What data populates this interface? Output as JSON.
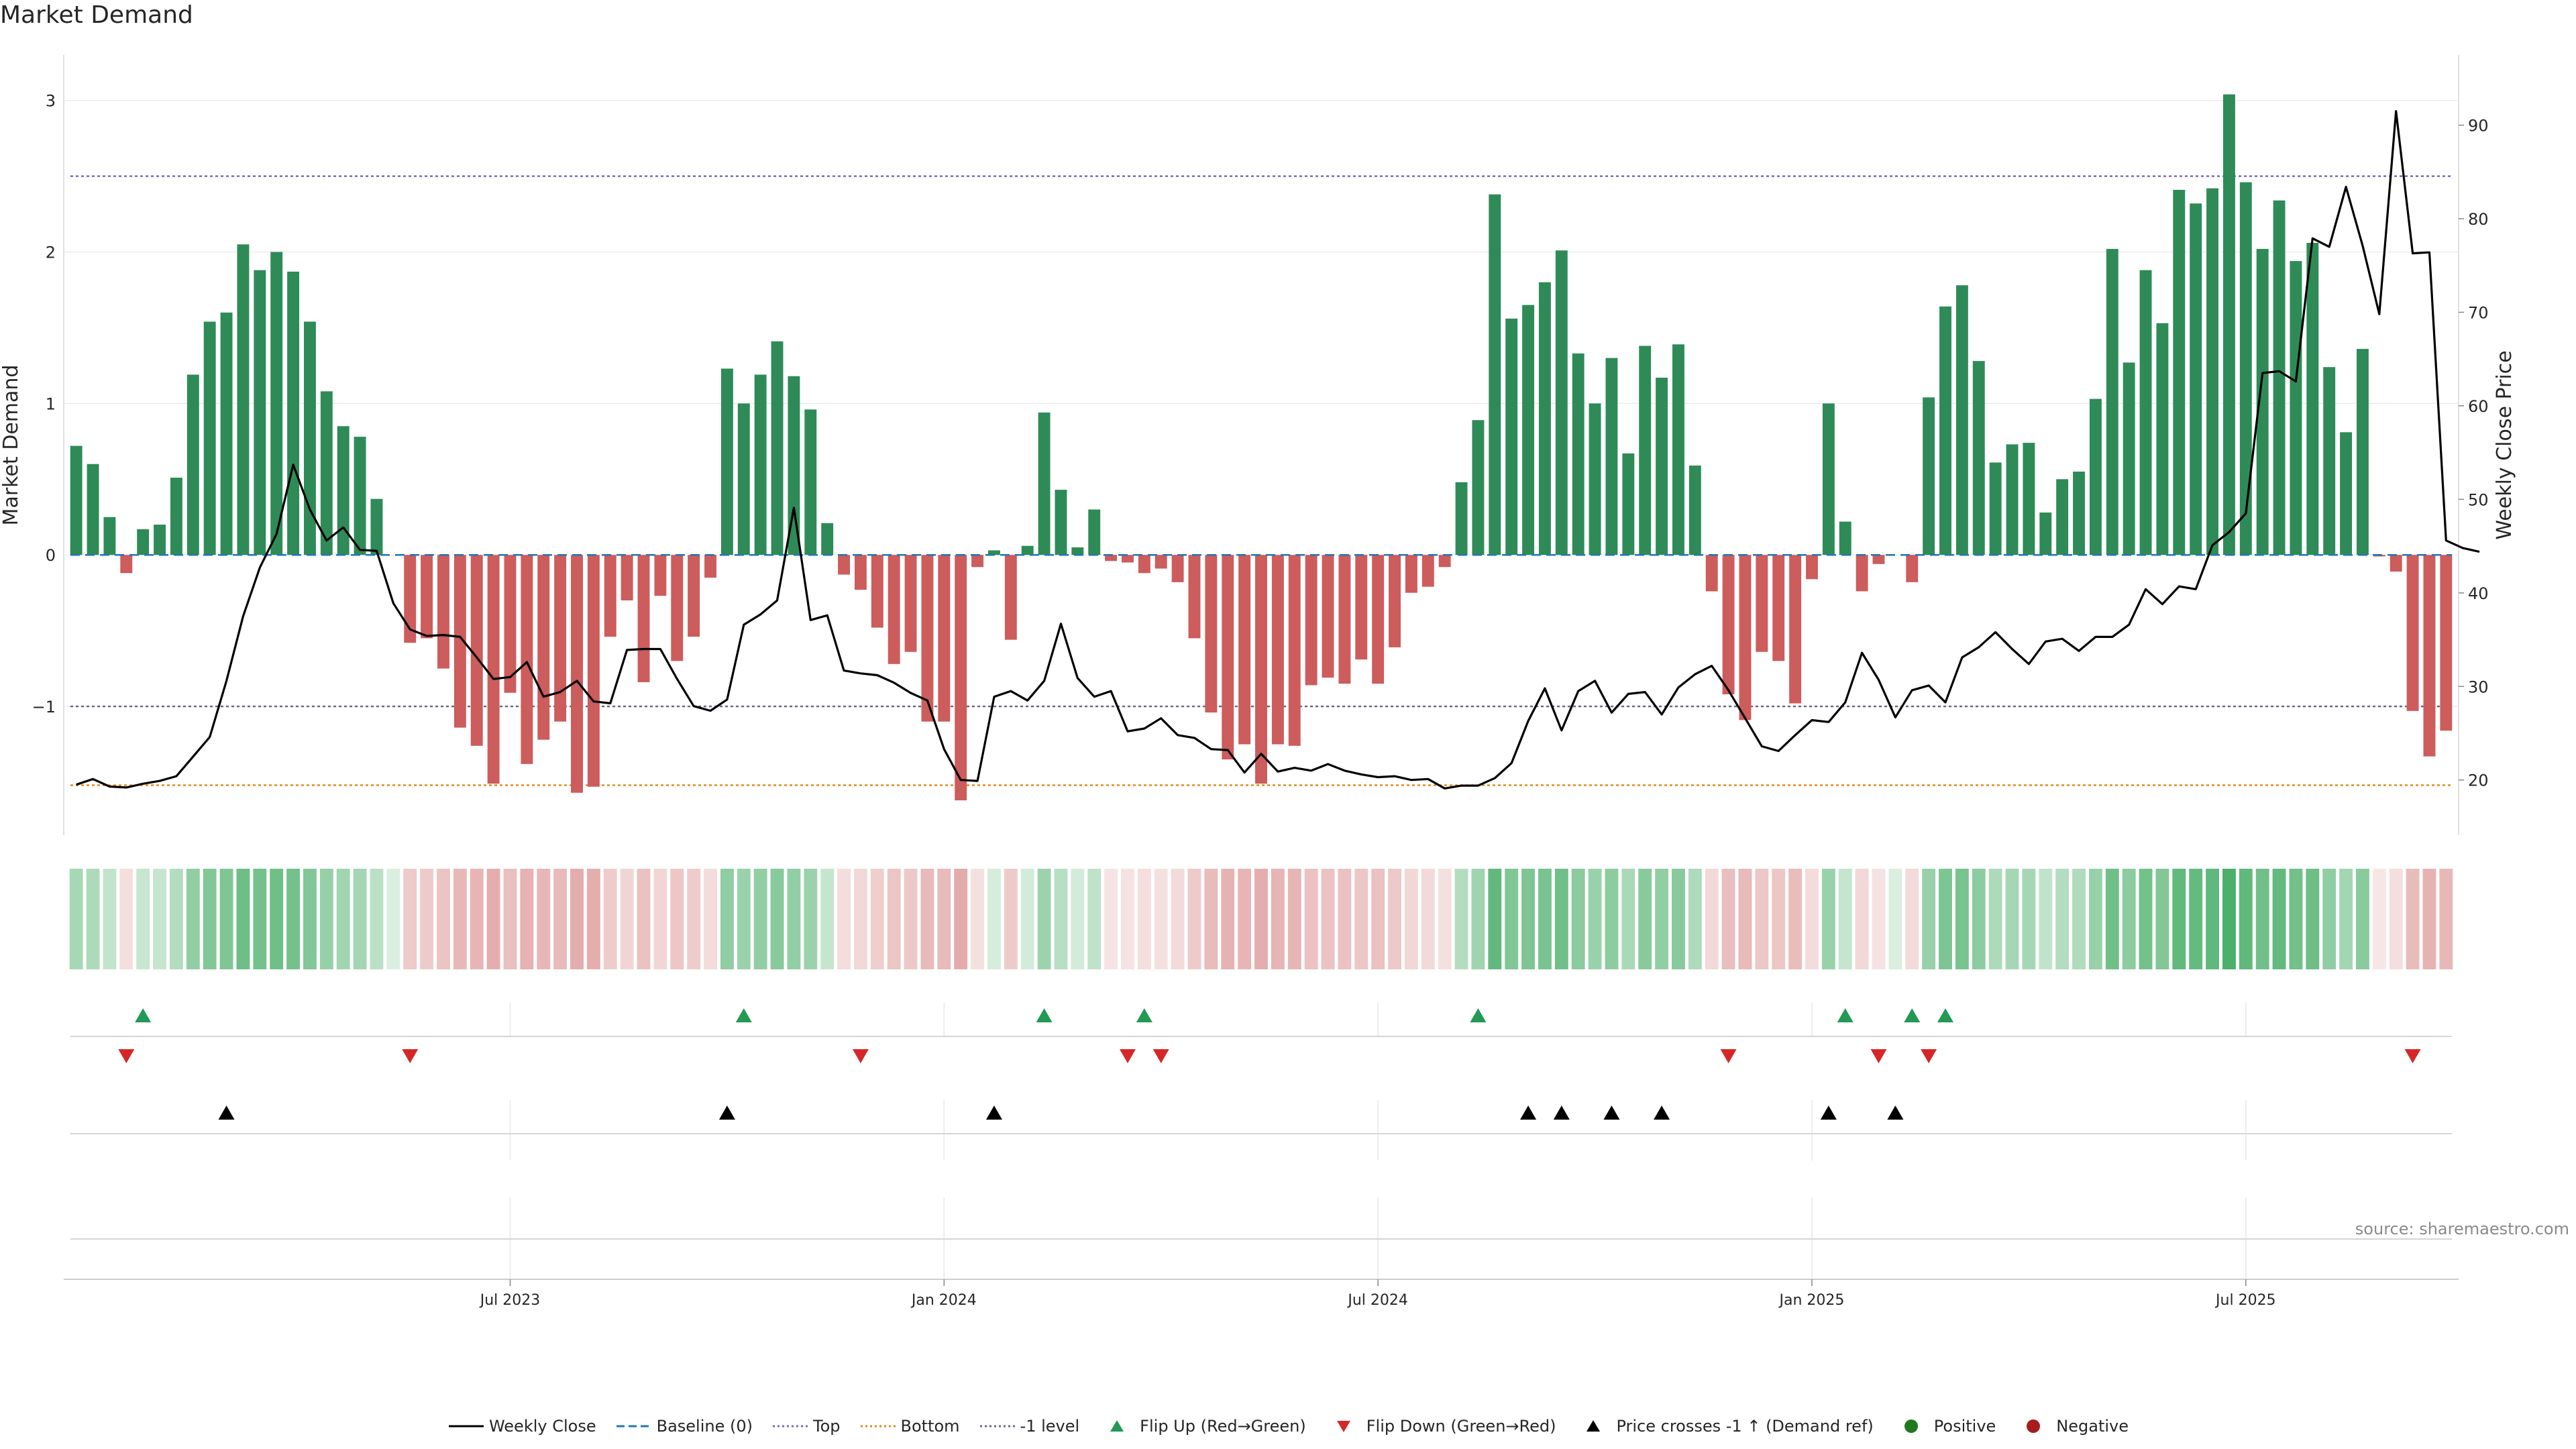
{
  "title": "Market Demand",
  "source": "source: sharemaestro.com",
  "chart_data": {
    "type": "bar+line",
    "title": "Market Demand",
    "ylabel_left": "Market Demand",
    "ylabel_right": "Weekly Close Price",
    "ylim_left": [
      -1.85,
      3.3
    ],
    "ylim_right": [
      14.1,
      97.5
    ],
    "yticks_left": [
      -1,
      0,
      1,
      2,
      3
    ],
    "yticks_right": [
      20,
      30,
      40,
      50,
      60,
      70,
      80,
      90
    ],
    "ytick_labels_left": [
      "−1",
      "0",
      "1",
      "2",
      "3"
    ],
    "ytick_labels_right": [
      "20",
      "30",
      "40",
      "50",
      "60",
      "70",
      "80",
      "90"
    ],
    "x_start": "2023-01-02",
    "x_step_days": 7,
    "x_tick_labels": [
      "Jul 2023",
      "Jan 2024",
      "Jul 2024",
      "Jan 2025",
      "Jul 2025"
    ],
    "x_tick_weeks": [
      26,
      52,
      78,
      104,
      130
    ],
    "reference_lines": {
      "top": 2.5,
      "bottom": -1.52,
      "minus_one": -1,
      "baseline": 0
    },
    "demand": [
      0.72,
      0.6,
      0.25,
      -0.12,
      0.17,
      0.2,
      0.51,
      1.19,
      1.54,
      1.6,
      2.05,
      1.88,
      2.0,
      1.87,
      1.54,
      1.08,
      0.85,
      0.78,
      0.37,
      0,
      -0.58,
      -0.55,
      -0.75,
      -1.14,
      -1.26,
      -1.51,
      -0.91,
      -1.38,
      -1.22,
      -1.1,
      -1.57,
      -1.53,
      -0.54,
      -0.3,
      -0.84,
      -0.27,
      -0.7,
      -0.54,
      -0.15,
      1.23,
      1.0,
      1.19,
      1.41,
      1.18,
      0.96,
      0.21,
      -0.13,
      -0.23,
      -0.48,
      -0.72,
      -0.64,
      -1.1,
      -1.1,
      -1.62,
      -0.08,
      0.03,
      -0.56,
      0.06,
      0.94,
      0.43,
      0.05,
      0.3,
      -0.04,
      -0.05,
      -0.12,
      -0.09,
      -0.18,
      -0.55,
      -1.04,
      -1.35,
      -1.25,
      -1.51,
      -1.25,
      -1.26,
      -0.86,
      -0.81,
      -0.85,
      -0.69,
      -0.85,
      -0.61,
      -0.25,
      -0.21,
      -0.08,
      0.48,
      0.89,
      2.38,
      1.56,
      1.65,
      1.8,
      2.01,
      1.33,
      1.0,
      1.3,
      0.67,
      1.38,
      1.17,
      1.39,
      0.59,
      -0.24,
      -0.92,
      -1.09,
      -0.64,
      -0.7,
      -0.98,
      -0.16,
      1.0,
      0.22,
      -0.24,
      -0.06,
      0,
      -0.18,
      1.04,
      1.64,
      1.78,
      1.28,
      0.61,
      0.73,
      0.74,
      0.28,
      0.5,
      0.55,
      1.03,
      2.02,
      1.27,
      1.88,
      1.53,
      2.41,
      2.32,
      2.42,
      3.04,
      2.46,
      2.02,
      2.34,
      1.94,
      2.06,
      1.24,
      0.81,
      1.36,
      -0.01,
      -0.11,
      -1.03,
      -1.33,
      -1.16
    ],
    "weekly_close": [
      19.5,
      20.1,
      19.3,
      19.2,
      19.6,
      19.9,
      20.4,
      22.5,
      24.6,
      30.6,
      37.5,
      42.7,
      46.3,
      53.7,
      48.9,
      45.6,
      47.0,
      44.6,
      44.5,
      38.9,
      36.1,
      35.4,
      35.5,
      35.3,
      33.1,
      30.8,
      31.0,
      32.6,
      28.9,
      29.4,
      30.6,
      28.4,
      28.2,
      33.9,
      34.0,
      34.0,
      30.8,
      27.9,
      27.4,
      28.6,
      36.6,
      37.7,
      39.2,
      49.1,
      37.1,
      37.6,
      31.7,
      31.4,
      31.2,
      30.4,
      29.3,
      28.5,
      23.3,
      20.0,
      19.9,
      28.9,
      29.5,
      28.5,
      30.6,
      36.7,
      30.9,
      28.9,
      29.5,
      25.2,
      25.5,
      26.6,
      24.8,
      24.5,
      23.3,
      23.2,
      20.8,
      22.8,
      20.9,
      21.3,
      21.0,
      21.7,
      21.0,
      20.6,
      20.3,
      20.4,
      20.0,
      20.1,
      19.1,
      19.4,
      19.4,
      20.2,
      21.8,
      26.3,
      29.8,
      25.3,
      29.5,
      30.6,
      27.2,
      29.2,
      29.4,
      27.0,
      29.9,
      31.3,
      32.2,
      29.6,
      26.6,
      23.6,
      23.1,
      24.8,
      26.4,
      26.2,
      28.3,
      33.6,
      30.7,
      26.7,
      29.6,
      30.1,
      28.3,
      33.1,
      34.2,
      35.8,
      34.0,
      32.4,
      34.8,
      35.1,
      33.8,
      35.3,
      35.3,
      36.6,
      40.4,
      38.8,
      40.7,
      40.4,
      45.1,
      46.5,
      48.5,
      63.5,
      63.7,
      62.6,
      77.9,
      77.0,
      83.4,
      77.1,
      69.8,
      91.5,
      76.3,
      76.4,
      45.6,
      44.8,
      44.4
    ],
    "flip_up_weeks": [
      4,
      40,
      58,
      64,
      84,
      106,
      110,
      112
    ],
    "flip_down_weeks": [
      3,
      20,
      47,
      63,
      65,
      99,
      108,
      111,
      140
    ],
    "price_cross_weeks": [
      9,
      39,
      55,
      87,
      89,
      92,
      95,
      105,
      109
    ],
    "legend": [
      {
        "label": "Weekly Close",
        "kind": "line",
        "color": "#000000"
      },
      {
        "label": "Baseline (0)",
        "kind": "dash",
        "color": "#1f77b4"
      },
      {
        "label": "Top",
        "kind": "dot",
        "color": "#7b68c4"
      },
      {
        "label": "Bottom",
        "kind": "dot",
        "color": "#e08a1e"
      },
      {
        "label": "-1 level",
        "kind": "dot",
        "color": "#6a6a80"
      },
      {
        "label": "Flip Up (Red→Green)",
        "kind": "tri-up",
        "color": "#229954"
      },
      {
        "label": "Flip Down (Green→Red)",
        "kind": "tri-down",
        "color": "#d62728"
      },
      {
        "label": "Price crosses -1 ↑ (Demand ref)",
        "kind": "tri-up",
        "color": "#000000"
      },
      {
        "label": "Positive",
        "kind": "circle",
        "color": "#1f7a1f"
      },
      {
        "label": "Negative",
        "kind": "circle",
        "color": "#a61c1c"
      }
    ],
    "colors": {
      "positive_bar": "#2e8b57",
      "negative_bar": "#cd5c5c",
      "price_line": "#000000"
    }
  }
}
